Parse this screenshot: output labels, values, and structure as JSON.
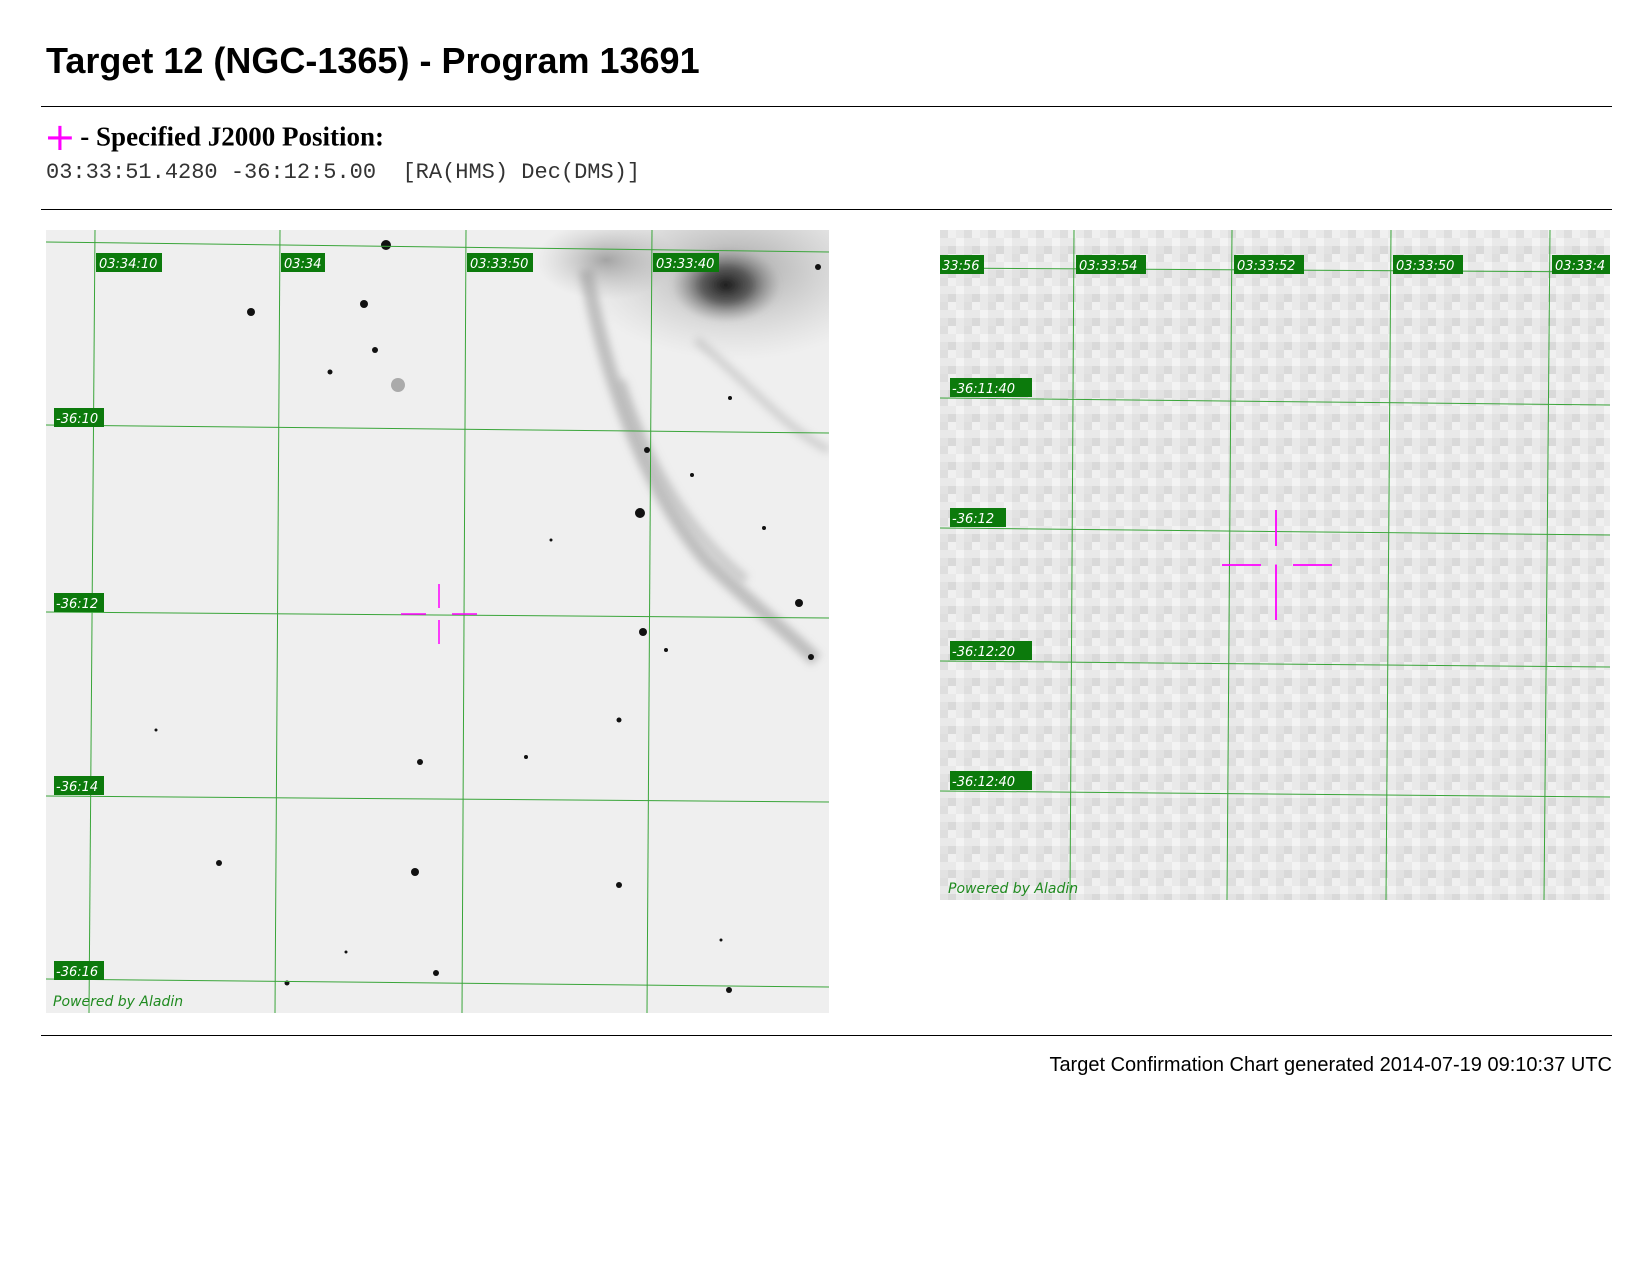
{
  "header": {
    "title": "Target 12 (NGC-1365) - Program 13691"
  },
  "position": {
    "marker_symbol": "+",
    "label": "- Specified J2000 Position:",
    "coordinates": "03:33:51.4280 -36:12:5.00",
    "format": "[RA(HMS) Dec(DMS)]"
  },
  "charts": {
    "wide": {
      "ra_labels": [
        "03:34:10",
        "03:34",
        "03:33:50",
        "03:33:40"
      ],
      "dec_labels": [
        "-36:10",
        "-36:12",
        "-36:14",
        "-36:16"
      ],
      "credit": "Powered by Aladin"
    },
    "zoom": {
      "ra_labels": [
        "33:56",
        "03:33:54",
        "03:33:52",
        "03:33:50",
        "03:33:4"
      ],
      "dec_labels": [
        "-36:11:40",
        "-36:12",
        "-36:12:20",
        "-36:12:40"
      ],
      "credit": "Powered by Aladin"
    }
  },
  "colors": {
    "marker": "#ff00ff",
    "grid": "#3aa53a",
    "label_bg": "#0c7a0c"
  },
  "footer": {
    "text": "Target Confirmation Chart generated 2014-07-19 09:10:37 UTC"
  }
}
